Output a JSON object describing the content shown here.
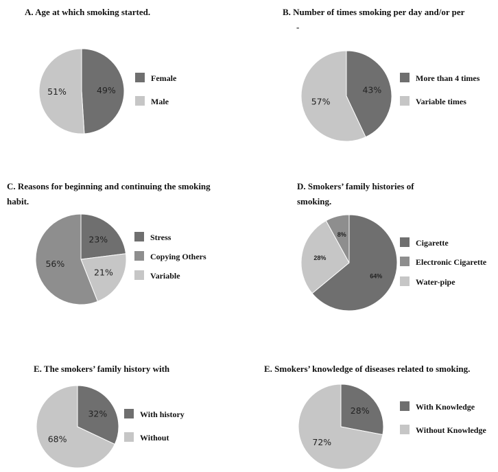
{
  "colors": {
    "dark": "#6f6f6f",
    "medium": "#8e8e8e",
    "light": "#c6c6c6",
    "slice_stroke": "#ffffff"
  },
  "chart_data": [
    {
      "type": "pie",
      "title": "A. Age at which smoking started.",
      "slices": [
        {
          "label": "Female",
          "value": 49,
          "value_label": "49%",
          "color": "dark"
        },
        {
          "label": "Male",
          "value": 51,
          "value_label": "51%",
          "color": "light"
        }
      ],
      "legend": "right"
    },
    {
      "type": "pie",
      "title": "B. Number of times smoking per day and/or per",
      "title_line2": "-",
      "slices": [
        {
          "label": "More than 4 times",
          "value": 43,
          "value_label": "43%",
          "color": "dark"
        },
        {
          "label": "Variable times",
          "value": 57,
          "value_label": "57%",
          "color": "light"
        }
      ],
      "legend": "right"
    },
    {
      "type": "pie",
      "title": "C. Reasons for beginning and continuing the smoking",
      "title_line2": "habit.",
      "slices": [
        {
          "label": "Stress",
          "value": 23,
          "value_label": "23%",
          "color": "dark"
        },
        {
          "label": "Variable",
          "value": 21,
          "value_label": "21%",
          "color": "light"
        },
        {
          "label": "Copying Others",
          "value": 56,
          "value_label": "56%",
          "color": "medium"
        }
      ],
      "legend_order": [
        "Stress",
        "Copying Others",
        "Variable"
      ],
      "legend": "right"
    },
    {
      "type": "pie",
      "title": "D. Smokers’ family histories of",
      "title_line2": "smoking.",
      "slices": [
        {
          "label": "Cigarette",
          "value": 64,
          "value_label": "64%",
          "color": "dark"
        },
        {
          "label": "Water-pipe",
          "value": 28,
          "value_label": "28%",
          "color": "light"
        },
        {
          "label": "Electronic Cigarette",
          "value": 8,
          "value_label": "8%",
          "color": "medium"
        }
      ],
      "legend_order": [
        "Cigarette",
        "Electronic Cigarette",
        "Water-pipe"
      ],
      "legend": "right"
    },
    {
      "type": "pie",
      "title": "E. The smokers’ family history with",
      "slices": [
        {
          "label": "With history",
          "value": 32,
          "value_label": "32%",
          "color": "dark"
        },
        {
          "label": "Without",
          "value": 68,
          "value_label": "68%",
          "color": "light"
        }
      ],
      "legend": "right"
    },
    {
      "type": "pie",
      "title": "E. Smokers’ knowledge of diseases related to smoking.",
      "slices": [
        {
          "label": "With Knowledge",
          "value": 28,
          "value_label": "28%",
          "color": "dark"
        },
        {
          "label": "Without Knowledge",
          "value": 72,
          "value_label": "72%",
          "color": "light"
        }
      ],
      "legend": "right"
    }
  ]
}
